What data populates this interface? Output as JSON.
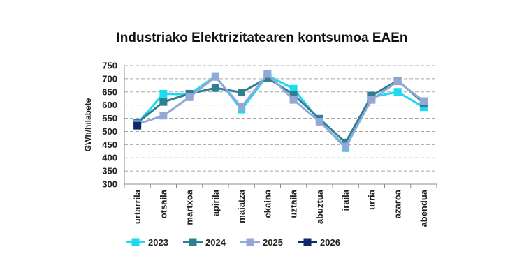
{
  "chart_data": {
    "type": "line",
    "title": "Industriako Elektrizitatearen kontsumoa EAEn",
    "xlabel": "",
    "ylabel": "GWh/hilabete",
    "ylim": [
      300,
      750
    ],
    "yticks": [
      300,
      350,
      400,
      450,
      500,
      550,
      600,
      650,
      700,
      750
    ],
    "grid": true,
    "legend_position": "bottom",
    "categories": [
      "urtarrila",
      "otsaila",
      "martxoa",
      "apirila",
      "maiatza",
      "ekaina",
      "uztaila",
      "abuztua",
      "iraila",
      "urria",
      "azaroa",
      "abendua"
    ],
    "series": [
      {
        "name": "2023",
        "color": "#1ed9f0",
        "marker": "square",
        "values": [
          530,
          643,
          640,
          710,
          583,
          712,
          662,
          540,
          437,
          630,
          650,
          592
        ]
      },
      {
        "name": "2024",
        "color": "#2e7f92",
        "marker": "square",
        "values": [
          533,
          612,
          643,
          665,
          648,
          703,
          640,
          548,
          458,
          636,
          693,
          608
        ]
      },
      {
        "name": "2025",
        "color": "#95a7d6",
        "marker": "square",
        "values": [
          528,
          560,
          630,
          707,
          593,
          718,
          620,
          537,
          443,
          620,
          690,
          615
        ]
      },
      {
        "name": "2026",
        "color": "#0e2a68",
        "marker": "square",
        "values": [
          522,
          null,
          null,
          null,
          null,
          null,
          null,
          null,
          null,
          null,
          null,
          null
        ]
      }
    ]
  }
}
